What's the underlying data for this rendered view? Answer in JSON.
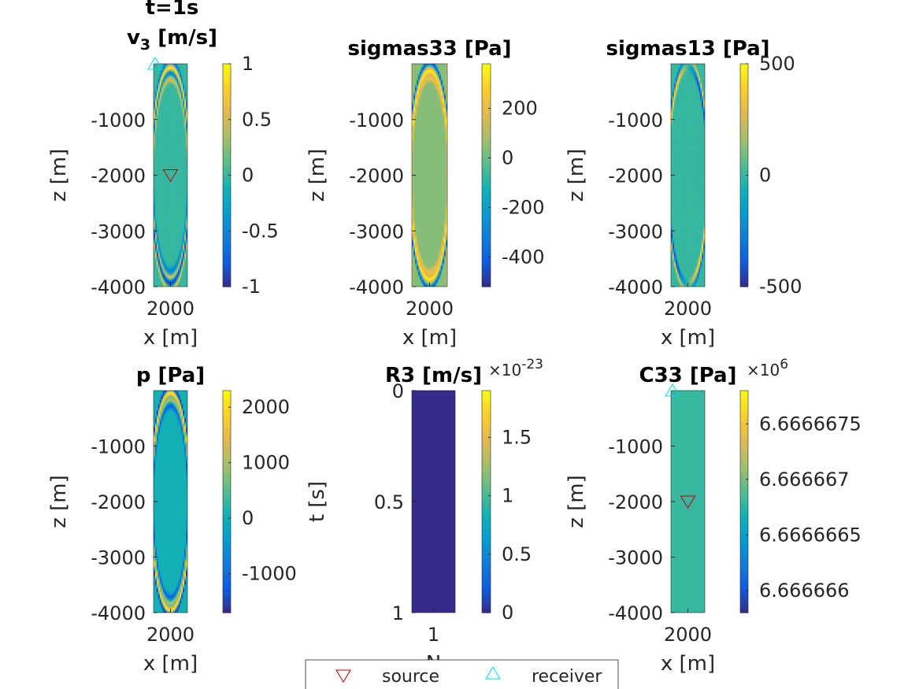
{
  "figure": {
    "legend": {
      "source_label": "source",
      "receiver_label": "receiver",
      "source_color": "#c00000",
      "receiver_color": "#00d8e8"
    }
  },
  "chart_data": [
    {
      "id": "v3",
      "type": "heatmap",
      "title": "v",
      "title_sub": "3",
      "title_unit": " [m/s]",
      "supertitle": "t=1s",
      "xlabel": "x [m]",
      "ylabel": "z [m]",
      "xticks": [
        "2000"
      ],
      "yticks": [
        -1000,
        -2000,
        -3000,
        -4000
      ],
      "ylim": [
        -4000,
        0
      ],
      "colorbar": {
        "min": -1,
        "max": 1,
        "ticks": [
          1,
          0.5,
          0,
          -0.5,
          -1
        ],
        "exponent": ""
      },
      "pattern": "v3",
      "markers": {
        "receiver_z": 0,
        "source_z": -2000
      }
    },
    {
      "id": "sigmas33",
      "type": "heatmap",
      "title": "sigmas33 [Pa]",
      "xlabel": "x [m]",
      "ylabel": "z [m]",
      "xticks": [
        "2000"
      ],
      "yticks": [
        -1000,
        -2000,
        -3000,
        -4000
      ],
      "ylim": [
        -4000,
        0
      ],
      "colorbar": {
        "min": -520,
        "max": 380,
        "ticks": [
          200,
          0,
          -200,
          -400
        ],
        "exponent": ""
      },
      "pattern": "s33"
    },
    {
      "id": "sigmas13",
      "type": "heatmap",
      "title": "sigmas13 [Pa]",
      "xlabel": "x [m]",
      "ylabel": "z [m]",
      "xticks": [
        "2000"
      ],
      "yticks": [
        -1000,
        -2000,
        -3000,
        -4000
      ],
      "ylim": [
        -4000,
        0
      ],
      "colorbar": {
        "min": -500,
        "max": 500,
        "ticks": [
          500,
          0,
          -500
        ],
        "exponent": ""
      },
      "pattern": "s13"
    },
    {
      "id": "p",
      "type": "heatmap",
      "title": "p [Pa]",
      "xlabel": "x [m]",
      "ylabel": "z [m]",
      "xticks": [
        "2000"
      ],
      "yticks": [
        -1000,
        -2000,
        -3000,
        -4000
      ],
      "ylim": [
        -4000,
        0
      ],
      "colorbar": {
        "min": -1700,
        "max": 2300,
        "ticks": [
          2000,
          1000,
          0,
          -1000
        ],
        "exponent": ""
      },
      "pattern": "p"
    },
    {
      "id": "R3",
      "type": "heatmap",
      "title": "R3 [m/s]",
      "xlabel": "N",
      "ylabel": "t [s]",
      "xticks": [
        "1"
      ],
      "yticks": [
        0,
        0.5,
        1
      ],
      "ylim": [
        1,
        0
      ],
      "colorbar": {
        "min": 0,
        "max": 1.9,
        "ticks": [
          1.5,
          1,
          0.5,
          0
        ],
        "exponent": "-23"
      },
      "pattern": "flat",
      "flat_value": 0
    },
    {
      "id": "C33",
      "type": "heatmap",
      "title": "C33 [Pa]",
      "xlabel": "x [m]",
      "ylabel": "z [m]",
      "xticks": [
        "2000"
      ],
      "yticks": [
        -1000,
        -2000,
        -3000,
        -4000
      ],
      "ylim": [
        -4000,
        0
      ],
      "colorbar": {
        "min": 6.6666658,
        "max": 6.6666678,
        "ticks": [
          "6.6666675",
          "6.666667",
          "6.6666665",
          "6.666666"
        ],
        "tick_values": [
          6.6666675,
          6.666667,
          6.6666665,
          6.666666
        ],
        "exponent": "6"
      },
      "pattern": "flat",
      "flat_value": 6.6666668,
      "markers": {
        "receiver_z": 0,
        "source_z": -2000
      }
    }
  ]
}
